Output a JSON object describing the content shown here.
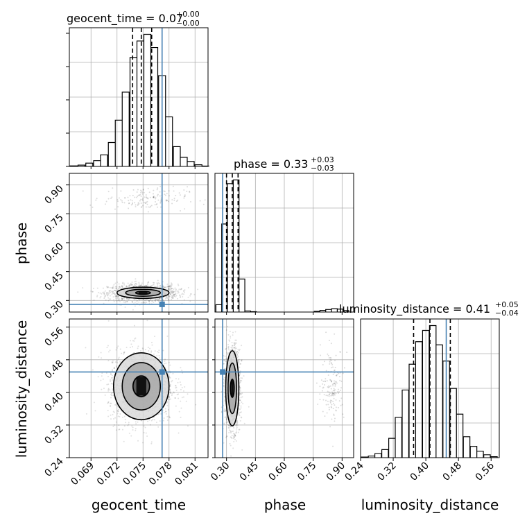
{
  "chart_data": {
    "type": "corner",
    "parameters": [
      {
        "name": "geocent_time",
        "label": "geocent_time",
        "title_main": "geocent_time = 0.07",
        "title_sup": "+0.00",
        "title_sub": "−0.00",
        "range": [
          0.0665,
          0.0825
        ],
        "ticks": [
          0.069,
          0.072,
          0.075,
          0.078,
          0.081
        ],
        "tick_labels": [
          "0.069",
          "0.072",
          "0.075",
          "0.078",
          "0.081"
        ],
        "truth": 0.0772,
        "quantiles": [
          0.0738,
          0.0748,
          0.076
        ],
        "hist": [
          {
            "x": 0.067,
            "y": 0.3
          },
          {
            "x": 0.0679,
            "y": 0.8
          },
          {
            "x": 0.0688,
            "y": 2.0
          },
          {
            "x": 0.0697,
            "y": 3.5
          },
          {
            "x": 0.0705,
            "y": 7.0
          },
          {
            "x": 0.0714,
            "y": 14.5
          },
          {
            "x": 0.0722,
            "y": 28.0
          },
          {
            "x": 0.073,
            "y": 45.0
          },
          {
            "x": 0.0739,
            "y": 66.0
          },
          {
            "x": 0.0747,
            "y": 76.0
          },
          {
            "x": 0.0755,
            "y": 80.0
          },
          {
            "x": 0.0763,
            "y": 72.0
          },
          {
            "x": 0.0772,
            "y": 55.0
          },
          {
            "x": 0.078,
            "y": 30.0
          },
          {
            "x": 0.0789,
            "y": 12.0
          },
          {
            "x": 0.0797,
            "y": 5.5
          },
          {
            "x": 0.0805,
            "y": 3.0
          },
          {
            "x": 0.0814,
            "y": 1.0
          },
          {
            "x": 0.0822,
            "y": 0.2
          }
        ]
      },
      {
        "name": "phase",
        "label": "phase",
        "title_main": "phase = 0.33",
        "title_sup": "+0.03",
        "title_sub": "−0.03",
        "range": [
          0.24,
          0.96
        ],
        "ticks": [
          0.3,
          0.45,
          0.6,
          0.75,
          0.9
        ],
        "tick_labels": [
          "0.30",
          "0.45",
          "0.60",
          "0.75",
          "0.90"
        ],
        "truth": 0.28,
        "quantiles": [
          0.3,
          0.33,
          0.36
        ],
        "hist": [
          {
            "x": 0.26,
            "y": 4.0
          },
          {
            "x": 0.29,
            "y": 48.0
          },
          {
            "x": 0.32,
            "y": 70.0
          },
          {
            "x": 0.35,
            "y": 72.0
          },
          {
            "x": 0.38,
            "y": 18.0
          },
          {
            "x": 0.41,
            "y": 0.6
          },
          {
            "x": 0.44,
            "y": 0.2
          },
          {
            "x": 0.77,
            "y": 0.4
          },
          {
            "x": 0.8,
            "y": 0.9
          },
          {
            "x": 0.83,
            "y": 1.4
          },
          {
            "x": 0.86,
            "y": 1.8
          },
          {
            "x": 0.89,
            "y": 1.6
          },
          {
            "x": 0.92,
            "y": 0.8
          }
        ]
      },
      {
        "name": "luminosity_distance",
        "label": "luminosity_distance",
        "title_main": "luminosity_distance = 0.41",
        "title_sup": "+0.05",
        "title_sub": "−0.04",
        "range": [
          0.24,
          0.58
        ],
        "ticks": [
          0.24,
          0.32,
          0.4,
          0.48,
          0.56
        ],
        "tick_labels": [
          "0.24",
          "0.32",
          "0.40",
          "0.48",
          "0.56"
        ],
        "truth": 0.45,
        "quantiles": [
          0.37,
          0.41,
          0.46
        ],
        "hist": [
          {
            "x": 0.25,
            "y": 0.4
          },
          {
            "x": 0.267,
            "y": 1.0
          },
          {
            "x": 0.283,
            "y": 2.5
          },
          {
            "x": 0.3,
            "y": 5.0
          },
          {
            "x": 0.317,
            "y": 12.0
          },
          {
            "x": 0.333,
            "y": 25.0
          },
          {
            "x": 0.35,
            "y": 42.0
          },
          {
            "x": 0.367,
            "y": 58.0
          },
          {
            "x": 0.383,
            "y": 72.0
          },
          {
            "x": 0.4,
            "y": 79.0
          },
          {
            "x": 0.417,
            "y": 82.0
          },
          {
            "x": 0.433,
            "y": 70.0
          },
          {
            "x": 0.45,
            "y": 60.0
          },
          {
            "x": 0.467,
            "y": 43.0
          },
          {
            "x": 0.483,
            "y": 27.0
          },
          {
            "x": 0.5,
            "y": 13.0
          },
          {
            "x": 0.517,
            "y": 7.0
          },
          {
            "x": 0.533,
            "y": 4.0
          },
          {
            "x": 0.55,
            "y": 1.8
          },
          {
            "x": 0.567,
            "y": 0.6
          }
        ]
      }
    ],
    "truth_color": "#4682b4",
    "line_color": "#000000",
    "grid": true,
    "pairs": [
      {
        "x": "geocent_time",
        "y": "phase",
        "main": {
          "cx": 0.075,
          "cy": 0.34,
          "sx": 0.002,
          "sy": 0.022
        },
        "secondary": {
          "cx": 0.0753,
          "cy": 0.83,
          "sx": 0.0024,
          "sy": 0.03
        },
        "contours": [
          {
            "rx": 0.00085,
            "ry": 0.008
          },
          {
            "rx": 0.002,
            "ry": 0.018
          },
          {
            "rx": 0.003,
            "ry": 0.029
          }
        ]
      },
      {
        "x": "geocent_time",
        "y": "luminosity_distance",
        "main": {
          "cx": 0.0748,
          "cy": 0.415,
          "sx": 0.0019,
          "sy": 0.045
        },
        "contours": [
          {
            "rx": 0.00095,
            "ry": 0.025
          },
          {
            "rx": 0.0022,
            "ry": 0.058
          },
          {
            "rx": 0.0032,
            "ry": 0.082
          }
        ]
      },
      {
        "x": "phase",
        "y": "luminosity_distance",
        "main": {
          "cx": 0.33,
          "cy": 0.41,
          "sx": 0.02,
          "sy": 0.05
        },
        "secondary": {
          "cx": 0.85,
          "cy": 0.42,
          "sx": 0.03,
          "sy": 0.045
        },
        "contours": [
          {
            "rx": 0.01,
            "ry": 0.022
          },
          {
            "rx": 0.022,
            "ry": 0.062
          },
          {
            "rx": 0.034,
            "ry": 0.092
          }
        ]
      }
    ]
  }
}
